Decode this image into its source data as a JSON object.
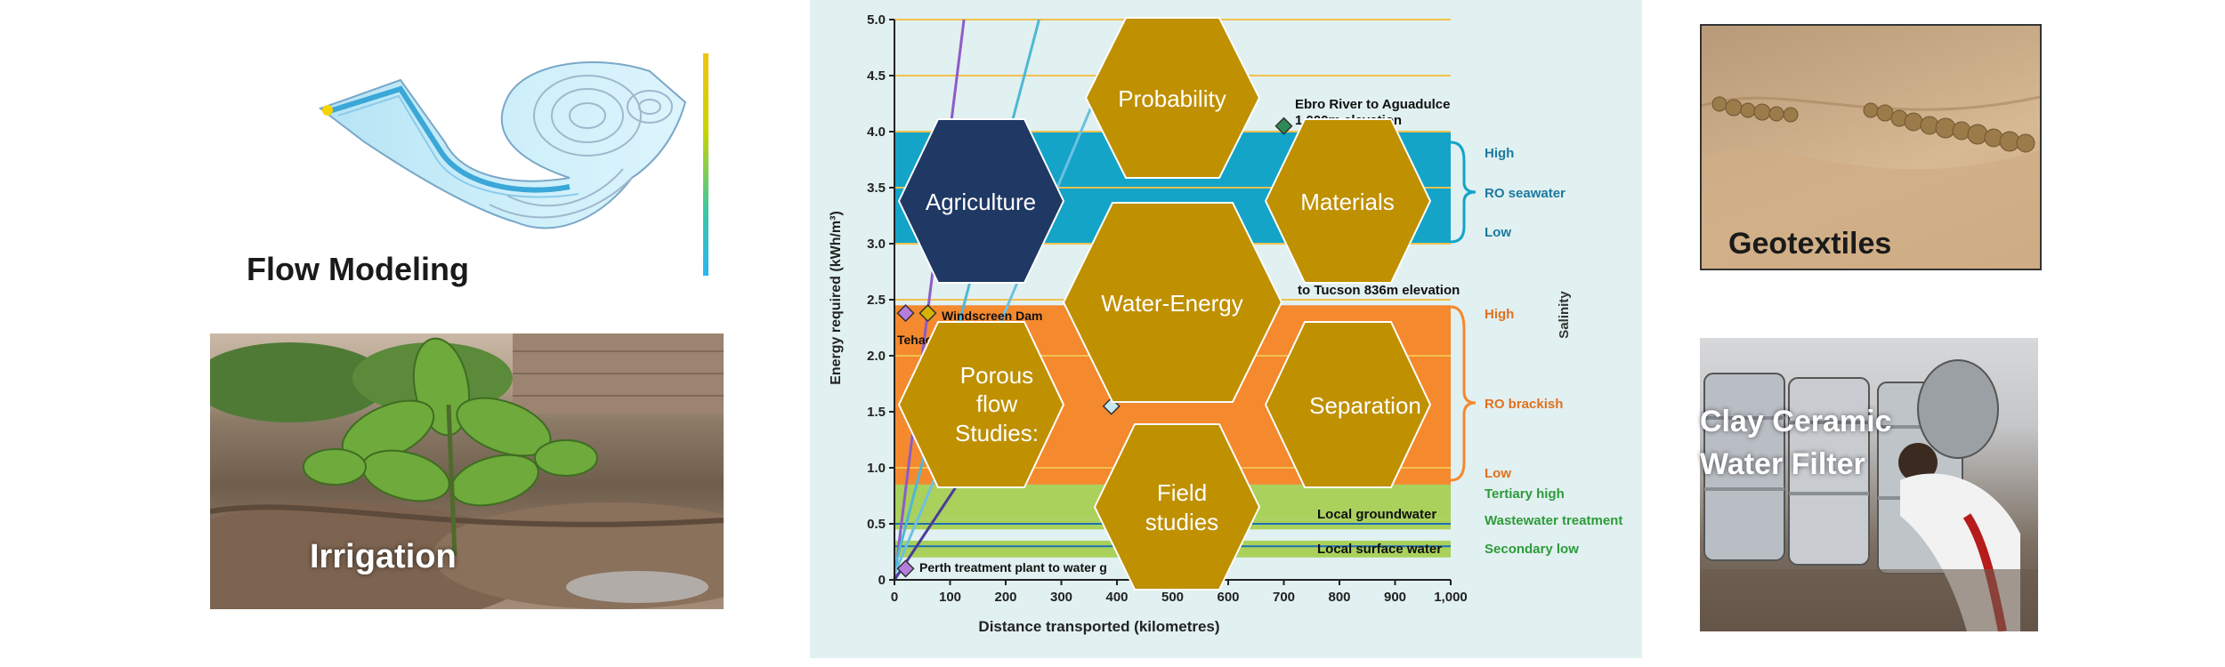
{
  "captions": {
    "flow_modeling": "Flow Modeling",
    "irrigation": "Irrigation",
    "geotextiles": "Geotextiles",
    "clay_filter_line1": "Clay Ceramic",
    "clay_filter_line2": "Water Filter"
  },
  "hexagons": {
    "probability": "Probability",
    "agriculture": "Agriculture",
    "materials": "Materials",
    "water_energy": "Water-Energy",
    "porous_line1": "Porous",
    "porous_line2": "flow",
    "porous_line3": "Studies:",
    "separation": "Separation",
    "field_line1": "Field",
    "field_line2": "studies"
  },
  "colors": {
    "hex_gold": "#BF9000",
    "hex_navy": "#1F3864",
    "chart_bg": "#E1F0F0",
    "band_teal": "#13A4C8",
    "band_orange": "#F4892E",
    "band_green": "#A9D15C",
    "line_gold": "#F2C14E"
  },
  "chart_data": {
    "type": "area",
    "xlabel": "Distance transported (kilometres)",
    "ylabel": "Energy required (kWh/m³)",
    "x_ticks": [
      "0",
      "100",
      "200",
      "300",
      "400",
      "500",
      "600",
      "700",
      "800",
      "900",
      "1,000"
    ],
    "y_ticks": [
      "0",
      "0.5",
      "1.0",
      "1.5",
      "2.0",
      "2.5",
      "3.0",
      "3.5",
      "4.0",
      "4.5",
      "5.0"
    ],
    "xlim": [
      0,
      1000
    ],
    "ylim": [
      0,
      5
    ],
    "bands": [
      {
        "name": "RO seawater",
        "y": [
          3.0,
          4.0
        ],
        "color": "#13A4C8"
      },
      {
        "name": "RO brackish",
        "y": [
          0.85,
          2.45
        ],
        "color": "#F4892E"
      },
      {
        "name": "Tertiary high",
        "y": [
          0.55,
          0.85
        ],
        "color": "#A9D15C"
      },
      {
        "name": "Local groundwater",
        "y": [
          0.45,
          0.55
        ],
        "color": "#A9D15C"
      },
      {
        "name": "Local surface water",
        "y": [
          0.2,
          0.35
        ],
        "color": "#A9D15C"
      }
    ],
    "legend": {
      "seawater_high": "High",
      "seawater_mid": "RO seawater",
      "seawater_low": "Low",
      "brackish_high": "High",
      "brackish_mid": "RO brackish",
      "brackish_low": "Low",
      "tertiary_high": "Tertiary high",
      "wastewater": "Wastewater treatment",
      "secondary_low": "Secondary low",
      "salinity": "Salinity"
    },
    "annotations": {
      "ebro_1": "Ebro River to Aguadulce",
      "ebro_2": "1,000m elevation",
      "tucson": "to Tucson 836m elevation",
      "windscreen": "Windscreen Dam",
      "tehachapi": "Tehachapi",
      "local_groundwater": "Local groundwater",
      "local_surface": "Local surface water",
      "perth": "Perth treatment plant to water g"
    },
    "points": [
      {
        "name": "Ebro River to Aguadulce",
        "x": 700,
        "y": 4.05,
        "color": "#2E8B57"
      },
      {
        "name": "Windscreen Dam",
        "x": 20,
        "y": 2.38,
        "color": "#B57EDC"
      },
      {
        "name": "Windscreen Dam 2",
        "x": 60,
        "y": 2.38,
        "color": "#D4B400"
      },
      {
        "name": "Perth treatment plant",
        "x": 20,
        "y": 0.1,
        "color": "#B57EDC"
      },
      {
        "name": "Porous flow point",
        "x": 390,
        "y": 1.55,
        "color": "#C8E6F0"
      }
    ]
  }
}
